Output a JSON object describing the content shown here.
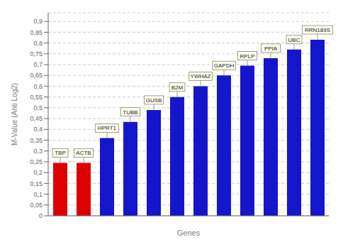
{
  "chart_data": {
    "type": "bar",
    "categories": [
      "TBP",
      "ACTB",
      "HPRT1",
      "TUBB",
      "GUSB",
      "B2M",
      "YWHAZ",
      "GAPDH",
      "RPLP",
      "PPIA",
      "UBC",
      "RRN189S"
    ],
    "values": [
      0.245,
      0.245,
      0.36,
      0.435,
      0.49,
      0.55,
      0.6,
      0.65,
      0.695,
      0.73,
      0.77,
      0.815
    ],
    "colors": [
      "#dd0000",
      "#dd0000",
      "#1515cc",
      "#1515cc",
      "#1515cc",
      "#1515cc",
      "#1515cc",
      "#1515cc",
      "#1515cc",
      "#1515cc",
      "#1515cc",
      "#1515cc"
    ],
    "xlabel": "Genes",
    "ylabel": "M-Value (Anti Log2)",
    "ylim": [
      0,
      0.94
    ],
    "yticks": [
      0,
      {
        "value": 0.05,
        "label": "0,05"
      },
      {
        "value": 0.1,
        "label": "0,1"
      },
      {
        "value": 0.15,
        "label": "0,15"
      },
      {
        "value": 0.2,
        "label": "0,2"
      },
      {
        "value": 0.25,
        "label": "0,25"
      },
      {
        "value": 0.3,
        "label": "0,3"
      },
      {
        "value": 0.35,
        "label": "0,35"
      },
      {
        "value": 0.4,
        "label": "0,4"
      },
      {
        "value": 0.45,
        "label": "0,45"
      },
      {
        "value": 0.5,
        "label": "0,5"
      },
      {
        "value": 0.55,
        "label": "0,55"
      },
      {
        "value": 0.6,
        "label": "0,6"
      },
      {
        "value": 0.65,
        "label": "0,65"
      },
      {
        "value": 0.7,
        "label": "0,7"
      },
      {
        "value": 0.75,
        "label": "0,75"
      },
      {
        "value": 0.8,
        "label": "0,8"
      },
      {
        "value": 0.85,
        "label": "0,85"
      },
      {
        "value": 0.9,
        "label": "0,9"
      }
    ],
    "grid": true,
    "tick_labels": "y"
  }
}
